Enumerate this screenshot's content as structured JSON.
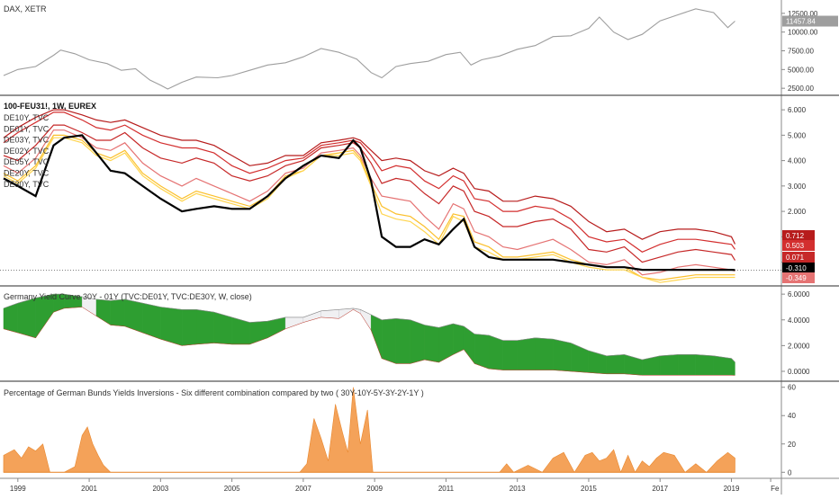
{
  "panels": {
    "dax": {
      "title": "DAX, XETR",
      "ticks": [
        2500,
        5000,
        7500,
        10000,
        12500
      ],
      "tick_labels": [
        "2500.00",
        "5000.00",
        "7500.00",
        "10000.00",
        "12500.00"
      ],
      "last_value": 11457.84,
      "last_label": "11457.84",
      "color": "#9e9e9e"
    },
    "yields": {
      "title": "100-FEU31!, 1W, EUREX",
      "legend": [
        "DE10Y, TVC",
        "DE01Y, TVC",
        "DE03Y, TVC",
        "DE02Y, TVC",
        "DE05Y, TVC",
        "DE20Y, TVC",
        "DE30Y, TVC"
      ],
      "ticks": [
        0,
        1,
        2,
        3,
        4,
        5,
        6
      ],
      "tick_labels": [
        "",
        "1.000",
        "2.000",
        "3.000",
        "4.000",
        "5.000",
        "6.000"
      ],
      "badges": [
        {
          "label": "0.712",
          "value": 0.712,
          "color": "#b71c1c"
        },
        {
          "label": "0.503",
          "value": 0.503,
          "color": "#d32f2f"
        },
        {
          "label": "0.071",
          "value": 0.071,
          "color": "#c62828"
        },
        {
          "label": "-0.310",
          "value": -0.31,
          "color": "#000000"
        },
        {
          "label": "-0.349",
          "value": -0.349,
          "color": "#e57373"
        }
      ]
    },
    "curve": {
      "title": "Germany Yield Curve 30Y - 01Y (TVC:DE01Y, TVC:DE30Y, W, close)",
      "ticks": [
        0,
        2,
        4,
        6
      ],
      "tick_labels": [
        "0.0000",
        "2.0000",
        "4.0000",
        "6.0000"
      ],
      "fill_color": "#2e9e31",
      "inverted_color": "#f0f0f2"
    },
    "inversions": {
      "title": "Percentage of German Bunds Yields Inversions - Six different combination compared by two  ( 30Y-10Y-5Y-3Y-2Y-1Y )",
      "ticks": [
        0,
        20,
        40,
        60
      ],
      "tick_labels": [
        "0",
        "20",
        "40",
        "60"
      ],
      "color": "#f4a259"
    }
  },
  "x_axis": {
    "tick_labels": [
      "1999",
      "2001",
      "2003",
      "2005",
      "2007",
      "2009",
      "2011",
      "2013",
      "2015",
      "2017",
      "2019",
      "Fe"
    ],
    "tick_values": [
      1999,
      2001,
      2003,
      2005,
      2007,
      2009,
      2011,
      2013,
      2015,
      2017,
      2019,
      2020.1
    ]
  },
  "chart_data": [
    {
      "type": "line",
      "title": "DAX, XETR",
      "x": [
        1998.6,
        1999.0,
        1999.5,
        2000.0,
        2000.2,
        2000.6,
        2001.0,
        2001.5,
        2001.9,
        2002.3,
        2002.7,
        2003.0,
        2003.2,
        2003.6,
        2004.0,
        2004.6,
        2005.0,
        2005.5,
        2006.0,
        2006.5,
        2007.0,
        2007.5,
        2008.0,
        2008.5,
        2008.9,
        2009.2,
        2009.6,
        2010.0,
        2010.5,
        2011.0,
        2011.4,
        2011.7,
        2012.0,
        2012.5,
        2013.0,
        2013.5,
        2014.0,
        2014.5,
        2015.0,
        2015.3,
        2015.7,
        2016.1,
        2016.5,
        2017.0,
        2017.5,
        2018.0,
        2018.5,
        2018.9,
        2019.1
      ],
      "y": [
        4200,
        5000,
        5400,
        6900,
        7600,
        7100,
        6300,
        5800,
        4900,
        5100,
        3600,
        2900,
        2400,
        3300,
        4000,
        3900,
        4200,
        4900,
        5600,
        5900,
        6700,
        7800,
        7300,
        6400,
        4600,
        3900,
        5400,
        5800,
        6100,
        7000,
        7300,
        5600,
        6300,
        6800,
        7700,
        8200,
        9400,
        9500,
        10500,
        12000,
        10000,
        9000,
        9700,
        11500,
        12300,
        13100,
        12600,
        10600,
        11457.84
      ]
    },
    {
      "type": "line",
      "title": "100-FEU31!, 1W, EUREX",
      "x": [
        1998.6,
        1999.0,
        1999.5,
        2000.0,
        2000.3,
        2000.8,
        2001.2,
        2001.6,
        2002.0,
        2002.5,
        2003.0,
        2003.6,
        2004.0,
        2004.5,
        2005.0,
        2005.5,
        2006.0,
        2006.5,
        2007.0,
        2007.5,
        2008.0,
        2008.4,
        2008.6,
        2008.9,
        2009.2,
        2009.6,
        2010.0,
        2010.4,
        2010.8,
        2011.2,
        2011.5,
        2011.8,
        2012.2,
        2012.6,
        2013.0,
        2013.5,
        2014.0,
        2014.5,
        2015.0,
        2015.5,
        2016.0,
        2016.5,
        2017.0,
        2017.5,
        2018.0,
        2018.5,
        2019.0,
        2019.1
      ],
      "series": [
        {
          "name": "DE30Y, TVC",
          "color": "#b71c1c",
          "values": [
            4.9,
            5.3,
            5.7,
            6.0,
            6.0,
            5.8,
            5.6,
            5.5,
            5.6,
            5.3,
            5.0,
            4.8,
            4.8,
            4.6,
            4.2,
            3.8,
            3.9,
            4.2,
            4.2,
            4.7,
            4.8,
            4.9,
            4.8,
            4.4,
            4.0,
            4.1,
            4.0,
            3.6,
            3.4,
            3.7,
            3.5,
            2.9,
            2.8,
            2.4,
            2.4,
            2.6,
            2.5,
            2.2,
            1.6,
            1.2,
            1.3,
            0.9,
            1.2,
            1.3,
            1.3,
            1.2,
            1.0,
            0.712
          ]
        },
        {
          "name": "DE20Y, TVC",
          "color": "#d32f2f",
          "values": [
            4.7,
            5.1,
            5.5,
            5.9,
            5.9,
            5.6,
            5.3,
            5.2,
            5.4,
            5.0,
            4.7,
            4.5,
            4.5,
            4.3,
            3.8,
            3.5,
            3.7,
            4.0,
            4.1,
            4.6,
            4.7,
            4.8,
            4.7,
            4.2,
            3.6,
            3.8,
            3.7,
            3.2,
            2.9,
            3.4,
            3.2,
            2.5,
            2.4,
            2.0,
            2.0,
            2.2,
            2.1,
            1.7,
            1.0,
            0.8,
            0.9,
            0.4,
            0.7,
            0.9,
            0.9,
            0.8,
            0.7,
            0.503
          ]
        },
        {
          "name": "DE10Y, TVC",
          "color": "#c62828",
          "values": [
            4.2,
            4.0,
            4.6,
            5.4,
            5.4,
            5.1,
            4.8,
            4.8,
            5.1,
            4.5,
            4.1,
            3.9,
            4.1,
            3.9,
            3.4,
            3.2,
            3.4,
            3.8,
            4.0,
            4.5,
            4.6,
            4.7,
            4.5,
            3.9,
            3.1,
            3.3,
            3.2,
            2.7,
            2.3,
            3.0,
            2.8,
            2.0,
            1.8,
            1.4,
            1.4,
            1.6,
            1.7,
            1.3,
            0.5,
            0.4,
            0.6,
            0.0,
            0.2,
            0.4,
            0.5,
            0.4,
            0.3,
            0.071
          ]
        },
        {
          "name": "DE05Y, TVC",
          "color": "#e57373",
          "values": [
            3.8,
            3.5,
            4.1,
            5.2,
            5.2,
            4.9,
            4.5,
            4.4,
            4.7,
            3.9,
            3.4,
            3.0,
            3.3,
            3.0,
            2.7,
            2.4,
            2.8,
            3.5,
            3.7,
            4.3,
            4.4,
            4.5,
            4.2,
            3.3,
            2.6,
            2.5,
            2.4,
            1.8,
            1.3,
            2.3,
            2.1,
            1.2,
            1.0,
            0.6,
            0.5,
            0.7,
            0.9,
            0.5,
            0.0,
            -0.1,
            0.1,
            -0.5,
            -0.4,
            -0.2,
            -0.1,
            -0.2,
            -0.3,
            -0.349
          ]
        },
        {
          "name": "DE03Y, TVC",
          "color": "#fbc02d",
          "values": [
            3.5,
            3.2,
            3.8,
            5.0,
            5.0,
            4.8,
            4.3,
            4.1,
            4.4,
            3.5,
            3.0,
            2.5,
            2.8,
            2.6,
            2.4,
            2.2,
            2.6,
            3.4,
            3.6,
            4.2,
            4.3,
            4.4,
            4.1,
            3.1,
            2.2,
            1.9,
            1.8,
            1.4,
            0.9,
            1.9,
            1.8,
            0.8,
            0.6,
            0.2,
            0.2,
            0.3,
            0.4,
            0.1,
            -0.1,
            -0.2,
            -0.2,
            -0.6,
            -0.7,
            -0.6,
            -0.5,
            -0.5,
            -0.5,
            -0.5
          ]
        },
        {
          "name": "DE02Y, TVC",
          "color": "#ffd54f",
          "values": [
            3.4,
            3.1,
            3.7,
            4.9,
            4.9,
            4.7,
            4.2,
            4.0,
            4.3,
            3.4,
            2.9,
            2.4,
            2.7,
            2.5,
            2.3,
            2.1,
            2.5,
            3.3,
            3.6,
            4.2,
            4.2,
            4.3,
            4.0,
            3.0,
            1.9,
            1.7,
            1.6,
            1.2,
            0.7,
            1.8,
            1.6,
            0.6,
            0.4,
            0.1,
            0.1,
            0.2,
            0.3,
            0.0,
            -0.2,
            -0.3,
            -0.3,
            -0.6,
            -0.8,
            -0.7,
            -0.6,
            -0.6,
            -0.6,
            -0.6
          ]
        },
        {
          "name": "DE01Y, TVC",
          "color": "#000000",
          "values": [
            3.3,
            3.0,
            2.6,
            4.6,
            4.9,
            5.0,
            4.3,
            3.6,
            3.5,
            3.0,
            2.5,
            2.0,
            2.1,
            2.2,
            2.1,
            2.1,
            2.6,
            3.3,
            3.8,
            4.2,
            4.1,
            4.8,
            4.5,
            3.2,
            1.0,
            0.6,
            0.6,
            0.9,
            0.7,
            1.3,
            1.7,
            0.6,
            0.2,
            0.1,
            0.1,
            0.1,
            0.1,
            0.0,
            -0.1,
            -0.2,
            -0.2,
            -0.3,
            -0.3,
            -0.3,
            -0.3,
            -0.3,
            -0.3,
            -0.31
          ]
        }
      ]
    },
    {
      "type": "area",
      "title": "Germany Yield Curve 30Y - 01Y (TVC:DE01Y, TVC:DE30Y, W, close)",
      "x": [
        1998.6,
        1999.0,
        1999.5,
        2000.0,
        2000.3,
        2000.8,
        2001.2,
        2001.6,
        2002.0,
        2002.5,
        2003.0,
        2003.6,
        2004.0,
        2004.5,
        2005.0,
        2005.5,
        2006.0,
        2006.5,
        2007.0,
        2007.5,
        2008.0,
        2008.4,
        2008.6,
        2008.9,
        2009.2,
        2009.6,
        2010.0,
        2010.4,
        2010.8,
        2011.2,
        2011.5,
        2011.8,
        2012.2,
        2012.6,
        2013.0,
        2013.5,
        2014.0,
        2014.5,
        2015.0,
        2015.5,
        2016.0,
        2016.5,
        2017.0,
        2017.5,
        2018.0,
        2018.5,
        2019.0,
        2019.1
      ],
      "series": [
        {
          "name": "DE30Y",
          "values": [
            4.9,
            5.3,
            5.7,
            6.0,
            6.0,
            5.8,
            5.6,
            5.5,
            5.6,
            5.3,
            5.0,
            4.8,
            4.8,
            4.6,
            4.2,
            3.8,
            3.9,
            4.2,
            4.2,
            4.7,
            4.8,
            4.9,
            4.8,
            4.4,
            4.0,
            4.1,
            4.0,
            3.6,
            3.4,
            3.7,
            3.5,
            2.9,
            2.8,
            2.4,
            2.4,
            2.6,
            2.5,
            2.2,
            1.6,
            1.2,
            1.3,
            0.9,
            1.2,
            1.3,
            1.3,
            1.2,
            1.0,
            0.712
          ]
        },
        {
          "name": "DE01Y",
          "values": [
            3.3,
            3.0,
            2.6,
            4.6,
            4.9,
            5.0,
            4.3,
            3.6,
            3.5,
            3.0,
            2.5,
            2.0,
            2.1,
            2.2,
            2.1,
            2.1,
            2.6,
            3.3,
            3.8,
            4.2,
            4.1,
            4.8,
            4.5,
            3.2,
            1.0,
            0.6,
            0.6,
            0.9,
            0.7,
            1.3,
            1.7,
            0.6,
            0.2,
            0.1,
            0.1,
            0.1,
            0.1,
            0.0,
            -0.1,
            -0.2,
            -0.2,
            -0.3,
            -0.3,
            -0.3,
            -0.3,
            -0.3,
            -0.3,
            -0.31
          ]
        }
      ]
    },
    {
      "type": "area",
      "title": "Percentage of German Bunds Yields Inversions - Six different combination compared by two  ( 30Y-10Y-5Y-3Y-2Y-1Y )",
      "x": [
        1998.6,
        1998.9,
        1999.1,
        1999.3,
        1999.5,
        1999.7,
        1999.9,
        2000.0,
        2000.3,
        2000.6,
        2000.8,
        2000.95,
        2001.1,
        2001.25,
        2001.4,
        2001.6,
        2001.9,
        2002.2,
        2002.5,
        2002.8,
        2003.0,
        2003.4,
        2003.8,
        2004.2,
        2004.6,
        2005.0,
        2005.4,
        2005.8,
        2006.2,
        2006.6,
        2006.9,
        2007.1,
        2007.3,
        2007.5,
        2007.7,
        2007.9,
        2008.1,
        2008.25,
        2008.4,
        2008.6,
        2008.8,
        2008.95,
        2009.2,
        2009.6,
        2010.0,
        2010.5,
        2011.0,
        2011.5,
        2012.0,
        2012.5,
        2012.7,
        2012.9,
        2013.3,
        2013.7,
        2014.0,
        2014.3,
        2014.6,
        2014.9,
        2015.1,
        2015.3,
        2015.5,
        2015.7,
        2015.9,
        2016.1,
        2016.3,
        2016.5,
        2016.7,
        2016.9,
        2017.1,
        2017.4,
        2017.7,
        2018.0,
        2018.3,
        2018.6,
        2018.9,
        2019.1
      ],
      "values": [
        12,
        16,
        10,
        18,
        15,
        20,
        0,
        0,
        0,
        4,
        26,
        32,
        20,
        12,
        5,
        0,
        0,
        0,
        0,
        0,
        0,
        0,
        0,
        0,
        0,
        0,
        0,
        0,
        0,
        0,
        0,
        6,
        38,
        24,
        8,
        48,
        28,
        14,
        60,
        20,
        44,
        0,
        0,
        0,
        0,
        0,
        0,
        0,
        0,
        0,
        6,
        0,
        5,
        0,
        10,
        14,
        0,
        12,
        14,
        8,
        10,
        16,
        0,
        12,
        0,
        8,
        4,
        10,
        14,
        12,
        0,
        6,
        0,
        8,
        14,
        10
      ],
      "ylim": [
        0,
        60
      ]
    }
  ]
}
